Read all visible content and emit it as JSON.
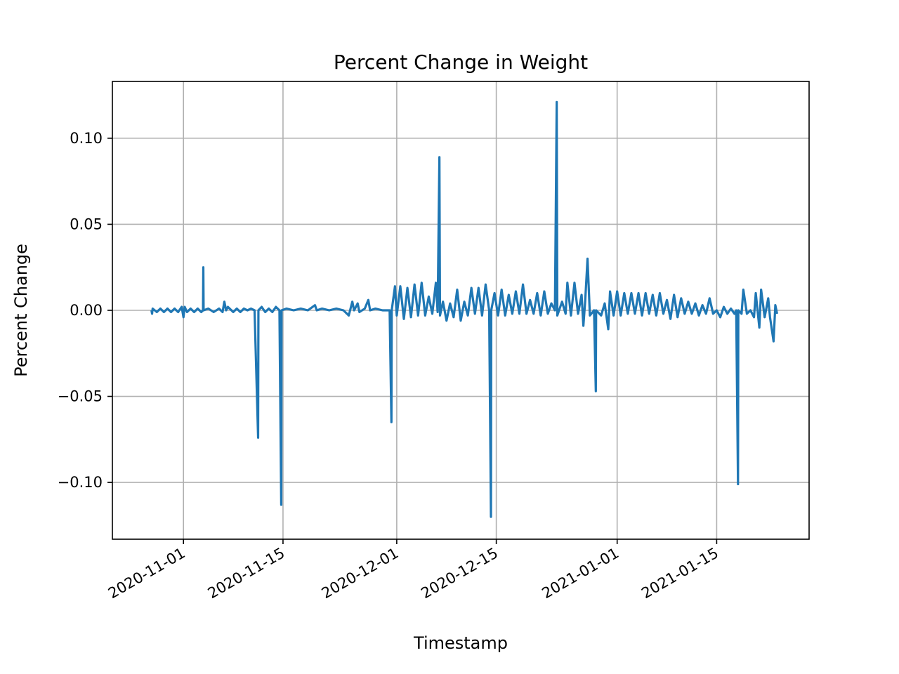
{
  "chart_data": {
    "type": "line",
    "title": "Percent Change in Weight",
    "xlabel": "Timestamp",
    "ylabel": "Percent Change",
    "xlim": [
      "2020-10-22",
      "2021-01-28"
    ],
    "ylim": [
      -0.133,
      0.133
    ],
    "x_ticks": [
      "2020-11-01",
      "2020-11-15",
      "2020-12-01",
      "2020-12-15",
      "2021-01-01",
      "2021-01-15"
    ],
    "y_ticks": [
      {
        "value": -0.1,
        "label": "−0.10"
      },
      {
        "value": -0.05,
        "label": "−0.05"
      },
      {
        "value": 0.0,
        "label": "0.00"
      },
      {
        "value": 0.05,
        "label": "0.05"
      },
      {
        "value": 0.1,
        "label": "0.10"
      }
    ],
    "grid": true,
    "color": "#1f77b4",
    "series": [
      {
        "points": [
          [
            "2020-10-27T12:00",
            0.0
          ],
          [
            "2020-10-27T14:00",
            -0.002
          ],
          [
            "2020-10-27T16:00",
            0.001
          ],
          [
            "2020-10-28T06:00",
            -0.001
          ],
          [
            "2020-10-28T18:00",
            0.001
          ],
          [
            "2020-10-29T06:00",
            -0.001
          ],
          [
            "2020-10-29T18:00",
            0.001
          ],
          [
            "2020-10-30T06:00",
            -0.001
          ],
          [
            "2020-10-30T18:00",
            0.001
          ],
          [
            "2020-10-31T06:00",
            -0.001
          ],
          [
            "2020-10-31T18:00",
            0.002
          ],
          [
            "2020-11-01T00:00",
            -0.004
          ],
          [
            "2020-11-01T04:00",
            0.002
          ],
          [
            "2020-11-01T12:00",
            -0.001
          ],
          [
            "2020-11-02T00:00",
            0.001
          ],
          [
            "2020-11-02T12:00",
            -0.001
          ],
          [
            "2020-11-03T00:00",
            0.001
          ],
          [
            "2020-11-03T12:00",
            -0.001
          ],
          [
            "2020-11-03T18:00",
            0.0
          ],
          [
            "2020-11-03T19:00",
            0.025
          ],
          [
            "2020-11-03T20:00",
            0.0
          ],
          [
            "2020-11-04T12:00",
            0.001
          ],
          [
            "2020-11-05T06:00",
            -0.001
          ],
          [
            "2020-11-06T00:00",
            0.001
          ],
          [
            "2020-11-06T12:00",
            -0.001
          ],
          [
            "2020-11-06T18:00",
            0.005
          ],
          [
            "2020-11-07T00:00",
            0.0
          ],
          [
            "2020-11-07T06:00",
            0.002
          ],
          [
            "2020-11-08T00:00",
            -0.001
          ],
          [
            "2020-11-08T12:00",
            0.001
          ],
          [
            "2020-11-09T00:00",
            -0.001
          ],
          [
            "2020-11-09T12:00",
            0.001
          ],
          [
            "2020-11-10T00:00",
            0.0
          ],
          [
            "2020-11-10T12:00",
            0.001
          ],
          [
            "2020-11-11T00:00",
            0.0
          ],
          [
            "2020-11-11T12:00",
            -0.074
          ],
          [
            "2020-11-11T13:00",
            0.0
          ],
          [
            "2020-11-12T00:00",
            0.002
          ],
          [
            "2020-11-12T12:00",
            -0.001
          ],
          [
            "2020-11-13T00:00",
            0.001
          ],
          [
            "2020-11-13T12:00",
            -0.001
          ],
          [
            "2020-11-14T00:00",
            0.002
          ],
          [
            "2020-11-14T12:00",
            0.0
          ],
          [
            "2020-11-14T18:00",
            -0.113
          ],
          [
            "2020-11-14T19:00",
            0.0
          ],
          [
            "2020-11-15T12:00",
            0.001
          ],
          [
            "2020-11-16T12:00",
            0.0
          ],
          [
            "2020-11-17T12:00",
            0.001
          ],
          [
            "2020-11-18T12:00",
            0.0
          ],
          [
            "2020-11-19T12:00",
            0.003
          ],
          [
            "2020-11-19T18:00",
            0.0
          ],
          [
            "2020-11-20T12:00",
            0.001
          ],
          [
            "2020-11-21T12:00",
            0.0
          ],
          [
            "2020-11-22T12:00",
            0.001
          ],
          [
            "2020-11-23T12:00",
            0.0
          ],
          [
            "2020-11-24T06:00",
            -0.003
          ],
          [
            "2020-11-24T12:00",
            0.001
          ],
          [
            "2020-11-24T18:00",
            0.005
          ],
          [
            "2020-11-25T00:00",
            0.0
          ],
          [
            "2020-11-25T12:00",
            0.004
          ],
          [
            "2020-11-25T18:00",
            -0.001
          ],
          [
            "2020-11-26T12:00",
            0.001
          ],
          [
            "2020-11-27T00:00",
            0.006
          ],
          [
            "2020-11-27T06:00",
            0.0
          ],
          [
            "2020-11-28T00:00",
            0.001
          ],
          [
            "2020-11-29T00:00",
            0.0
          ],
          [
            "2020-11-30T00:00",
            0.0
          ],
          [
            "2020-11-30T06:00",
            -0.065
          ],
          [
            "2020-11-30T07:00",
            0.0
          ],
          [
            "2020-11-30T18:00",
            0.014
          ],
          [
            "2020-12-01T00:00",
            -0.003
          ],
          [
            "2020-12-01T12:00",
            0.014
          ],
          [
            "2020-12-02T00:00",
            -0.005
          ],
          [
            "2020-12-02T12:00",
            0.013
          ],
          [
            "2020-12-03T00:00",
            -0.004
          ],
          [
            "2020-12-03T12:00",
            0.015
          ],
          [
            "2020-12-04T00:00",
            -0.003
          ],
          [
            "2020-12-04T12:00",
            0.016
          ],
          [
            "2020-12-05T00:00",
            -0.003
          ],
          [
            "2020-12-05T12:00",
            0.008
          ],
          [
            "2020-12-06T00:00",
            -0.002
          ],
          [
            "2020-12-06T12:00",
            0.016
          ],
          [
            "2020-12-06T18:00",
            -0.001
          ],
          [
            "2020-12-07T00:00",
            0.089
          ],
          [
            "2020-12-07T02:00",
            -0.003
          ],
          [
            "2020-12-07T12:00",
            0.005
          ],
          [
            "2020-12-08T00:00",
            -0.006
          ],
          [
            "2020-12-08T12:00",
            0.004
          ],
          [
            "2020-12-09T00:00",
            -0.004
          ],
          [
            "2020-12-09T12:00",
            0.012
          ],
          [
            "2020-12-10T00:00",
            -0.006
          ],
          [
            "2020-12-10T12:00",
            0.005
          ],
          [
            "2020-12-11T00:00",
            -0.003
          ],
          [
            "2020-12-11T12:00",
            0.013
          ],
          [
            "2020-12-12T00:00",
            -0.002
          ],
          [
            "2020-12-12T12:00",
            0.013
          ],
          [
            "2020-12-13T00:00",
            -0.003
          ],
          [
            "2020-12-13T12:00",
            0.015
          ],
          [
            "2020-12-14T00:00",
            0.0
          ],
          [
            "2020-12-14T06:00",
            -0.12
          ],
          [
            "2020-12-14T07:00",
            0.0
          ],
          [
            "2020-12-14T18:00",
            0.01
          ],
          [
            "2020-12-15T06:00",
            -0.003
          ],
          [
            "2020-12-15T18:00",
            0.012
          ],
          [
            "2020-12-16T06:00",
            -0.003
          ],
          [
            "2020-12-16T18:00",
            0.009
          ],
          [
            "2020-12-17T06:00",
            -0.002
          ],
          [
            "2020-12-17T18:00",
            0.011
          ],
          [
            "2020-12-18T06:00",
            -0.002
          ],
          [
            "2020-12-18T18:00",
            0.015
          ],
          [
            "2020-12-19T06:00",
            -0.002
          ],
          [
            "2020-12-19T18:00",
            0.006
          ],
          [
            "2020-12-20T06:00",
            -0.002
          ],
          [
            "2020-12-20T18:00",
            0.01
          ],
          [
            "2020-12-21T06:00",
            -0.003
          ],
          [
            "2020-12-21T18:00",
            0.011
          ],
          [
            "2020-12-22T06:00",
            -0.002
          ],
          [
            "2020-12-22T18:00",
            0.004
          ],
          [
            "2020-12-23T06:00",
            0.0
          ],
          [
            "2020-12-23T12:00",
            0.121
          ],
          [
            "2020-12-23T14:00",
            -0.003
          ],
          [
            "2020-12-24T06:00",
            0.005
          ],
          [
            "2020-12-24T18:00",
            -0.002
          ],
          [
            "2020-12-25T00:00",
            0.016
          ],
          [
            "2020-12-25T12:00",
            -0.003
          ],
          [
            "2020-12-26T00:00",
            0.016
          ],
          [
            "2020-12-26T12:00",
            -0.002
          ],
          [
            "2020-12-27T00:00",
            0.009
          ],
          [
            "2020-12-27T06:00",
            -0.009
          ],
          [
            "2020-12-27T12:00",
            0.005
          ],
          [
            "2020-12-27T20:00",
            0.03
          ],
          [
            "2020-12-28T04:00",
            -0.003
          ],
          [
            "2020-12-28T18:00",
            0.0
          ],
          [
            "2020-12-29T00:00",
            -0.047
          ],
          [
            "2020-12-29T01:00",
            0.0
          ],
          [
            "2020-12-29T18:00",
            -0.003
          ],
          [
            "2020-12-30T06:00",
            0.004
          ],
          [
            "2020-12-30T18:00",
            -0.011
          ],
          [
            "2020-12-31T00:00",
            0.011
          ],
          [
            "2020-12-31T12:00",
            -0.003
          ],
          [
            "2021-01-01T00:00",
            0.011
          ],
          [
            "2021-01-01T12:00",
            -0.003
          ],
          [
            "2021-01-02T00:00",
            0.01
          ],
          [
            "2021-01-02T12:00",
            -0.002
          ],
          [
            "2021-01-03T00:00",
            0.01
          ],
          [
            "2021-01-03T12:00",
            -0.002
          ],
          [
            "2021-01-04T00:00",
            0.01
          ],
          [
            "2021-01-04T12:00",
            -0.003
          ],
          [
            "2021-01-05T00:00",
            0.01
          ],
          [
            "2021-01-05T12:00",
            -0.002
          ],
          [
            "2021-01-06T00:00",
            0.009
          ],
          [
            "2021-01-06T12:00",
            -0.003
          ],
          [
            "2021-01-07T00:00",
            0.01
          ],
          [
            "2021-01-07T12:00",
            -0.002
          ],
          [
            "2021-01-08T00:00",
            0.006
          ],
          [
            "2021-01-08T12:00",
            -0.005
          ],
          [
            "2021-01-09T00:00",
            0.009
          ],
          [
            "2021-01-09T12:00",
            -0.004
          ],
          [
            "2021-01-10T00:00",
            0.007
          ],
          [
            "2021-01-10T12:00",
            -0.002
          ],
          [
            "2021-01-11T00:00",
            0.005
          ],
          [
            "2021-01-11T12:00",
            -0.002
          ],
          [
            "2021-01-12T00:00",
            0.004
          ],
          [
            "2021-01-12T12:00",
            -0.003
          ],
          [
            "2021-01-13T00:00",
            0.003
          ],
          [
            "2021-01-13T12:00",
            -0.002
          ],
          [
            "2021-01-14T00:00",
            0.007
          ],
          [
            "2021-01-14T12:00",
            -0.002
          ],
          [
            "2021-01-15T00:00",
            0.0
          ],
          [
            "2021-01-15T12:00",
            -0.004
          ],
          [
            "2021-01-16T00:00",
            0.002
          ],
          [
            "2021-01-16T12:00",
            -0.002
          ],
          [
            "2021-01-17T00:00",
            0.001
          ],
          [
            "2021-01-17T12:00",
            -0.002
          ],
          [
            "2021-01-17T18:00",
            0.0
          ],
          [
            "2021-01-18T00:00",
            -0.101
          ],
          [
            "2021-01-18T01:00",
            0.0
          ],
          [
            "2021-01-18T12:00",
            -0.002
          ],
          [
            "2021-01-18T18:00",
            0.012
          ],
          [
            "2021-01-19T06:00",
            -0.002
          ],
          [
            "2021-01-19T18:00",
            0.0
          ],
          [
            "2021-01-20T06:00",
            -0.004
          ],
          [
            "2021-01-20T12:00",
            0.01
          ],
          [
            "2021-01-21T00:00",
            -0.01
          ],
          [
            "2021-01-21T06:00",
            0.012
          ],
          [
            "2021-01-21T18:00",
            -0.004
          ],
          [
            "2021-01-22T06:00",
            0.007
          ],
          [
            "2021-01-22T12:00",
            -0.004
          ],
          [
            "2021-01-23T00:00",
            -0.018
          ],
          [
            "2021-01-23T06:00",
            0.003
          ],
          [
            "2021-01-23T12:00",
            -0.002
          ]
        ]
      }
    ]
  }
}
